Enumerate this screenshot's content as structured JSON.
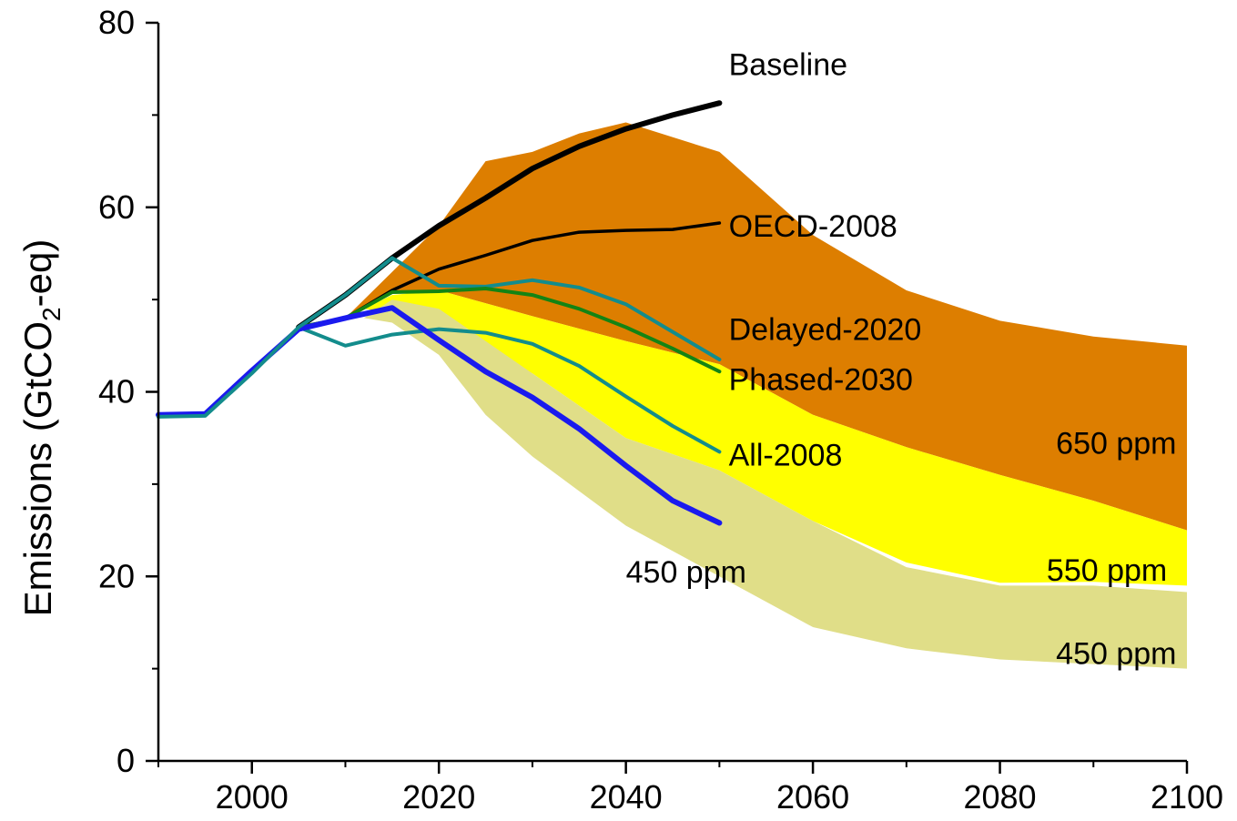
{
  "chart_data": {
    "type": "area",
    "title": "",
    "xlabel": "",
    "ylabel": {
      "prefix": "Emissions (GtCO",
      "subscript": "2",
      "suffix": "-eq)"
    },
    "xlim": [
      1990,
      2100
    ],
    "ylim": [
      0,
      80
    ],
    "x_ticks": [
      2000,
      2020,
      2040,
      2060,
      2080,
      2100
    ],
    "y_ticks": [
      0,
      20,
      40,
      60,
      80
    ],
    "grid": false,
    "bands": [
      {
        "name": "650 ppm",
        "color": "#DD7E00",
        "upper": [
          [
            2010,
            48
          ],
          [
            2015,
            53
          ],
          [
            2020,
            58
          ],
          [
            2025,
            65
          ],
          [
            2030,
            66
          ],
          [
            2035,
            68
          ],
          [
            2040,
            69.2
          ],
          [
            2050,
            66
          ],
          [
            2060,
            57
          ],
          [
            2070,
            51
          ],
          [
            2080,
            47.7
          ],
          [
            2090,
            46
          ],
          [
            2100,
            45
          ]
        ],
        "lower": [
          [
            2010,
            48
          ],
          [
            2015,
            51
          ],
          [
            2020,
            51
          ],
          [
            2030,
            48.2
          ],
          [
            2040,
            45.5
          ],
          [
            2050,
            43
          ],
          [
            2060,
            37.5
          ],
          [
            2070,
            34
          ],
          [
            2080,
            31
          ],
          [
            2090,
            28.2
          ],
          [
            2100,
            25
          ]
        ]
      },
      {
        "name": "550 ppm",
        "color": "#FFFF00",
        "upper": [
          [
            2012,
            49
          ],
          [
            2015,
            50.5
          ],
          [
            2020,
            51
          ],
          [
            2030,
            48.2
          ],
          [
            2040,
            45.5
          ],
          [
            2050,
            43
          ],
          [
            2060,
            37.5
          ],
          [
            2070,
            34
          ],
          [
            2080,
            31
          ],
          [
            2090,
            28.2
          ],
          [
            2100,
            25
          ]
        ],
        "lower": [
          [
            2012,
            49
          ],
          [
            2015,
            48.5
          ],
          [
            2020,
            47
          ],
          [
            2030,
            42
          ],
          [
            2040,
            35
          ],
          [
            2050,
            31.5
          ],
          [
            2060,
            26
          ],
          [
            2070,
            21.5
          ],
          [
            2080,
            19.3
          ],
          [
            2090,
            19.4
          ],
          [
            2100,
            19
          ]
        ]
      },
      {
        "name": "450 ppm",
        "color": "#E0DE88",
        "upper": [
          [
            2012,
            48
          ],
          [
            2015,
            50
          ],
          [
            2020,
            49
          ],
          [
            2030,
            42
          ],
          [
            2040,
            35
          ],
          [
            2050,
            31.5
          ],
          [
            2060,
            26
          ],
          [
            2070,
            21
          ],
          [
            2080,
            19
          ],
          [
            2090,
            19
          ],
          [
            2100,
            18.3
          ]
        ],
        "lower": [
          [
            2012,
            48
          ],
          [
            2015,
            47.5
          ],
          [
            2020,
            44
          ],
          [
            2025,
            37.5
          ],
          [
            2030,
            33
          ],
          [
            2040,
            25.5
          ],
          [
            2050,
            20
          ],
          [
            2060,
            14.5
          ],
          [
            2070,
            12.2
          ],
          [
            2080,
            11
          ],
          [
            2090,
            10.5
          ],
          [
            2100,
            10
          ]
        ]
      }
    ],
    "series": [
      {
        "name": "Baseline",
        "color": "#000000",
        "width": 6,
        "points": [
          [
            2005,
            47
          ],
          [
            2010,
            50.5
          ],
          [
            2015,
            54.5
          ],
          [
            2020,
            58
          ],
          [
            2025,
            61
          ],
          [
            2030,
            64.2
          ],
          [
            2035,
            66.6
          ],
          [
            2040,
            68.5
          ],
          [
            2045,
            70
          ],
          [
            2050,
            71.3
          ]
        ]
      },
      {
        "name": "OECD-2008",
        "color": "#000000",
        "width": 3.5,
        "points": [
          [
            2005,
            47
          ],
          [
            2010,
            48
          ],
          [
            2015,
            51
          ],
          [
            2020,
            53.3
          ],
          [
            2025,
            54.8
          ],
          [
            2030,
            56.4
          ],
          [
            2035,
            57.3
          ],
          [
            2040,
            57.5
          ],
          [
            2045,
            57.6
          ],
          [
            2050,
            58.3
          ]
        ]
      },
      {
        "name": "Delayed-2020",
        "color": "#138C8C",
        "width": 4,
        "points": [
          [
            2005,
            47
          ],
          [
            2010,
            50.5
          ],
          [
            2015,
            54.5
          ],
          [
            2020,
            51.5
          ],
          [
            2025,
            51.4
          ],
          [
            2030,
            52.1
          ],
          [
            2035,
            51.3
          ],
          [
            2040,
            49.5
          ],
          [
            2045,
            46.5
          ],
          [
            2050,
            43.5
          ]
        ]
      },
      {
        "name": "Phased-2030",
        "color": "#148414",
        "width": 4,
        "points": [
          [
            2005,
            47
          ],
          [
            2010,
            48
          ],
          [
            2015,
            50.8
          ],
          [
            2020,
            50.9
          ],
          [
            2025,
            51.2
          ],
          [
            2030,
            50.5
          ],
          [
            2035,
            49
          ],
          [
            2040,
            47
          ],
          [
            2045,
            44.7
          ],
          [
            2050,
            42.2
          ]
        ]
      },
      {
        "name": "All-2008",
        "color": "#138C8C",
        "width": 4,
        "points": [
          [
            2005,
            47
          ],
          [
            2010,
            45
          ],
          [
            2015,
            46.2
          ],
          [
            2020,
            46.8
          ],
          [
            2025,
            46.4
          ],
          [
            2030,
            45.2
          ],
          [
            2035,
            42.8
          ],
          [
            2040,
            39.5
          ],
          [
            2045,
            36.3
          ],
          [
            2050,
            33.5
          ]
        ]
      },
      {
        "name": "450 ppm",
        "color": "#1A1AEE",
        "width": 6,
        "points": [
          [
            1990,
            37.5
          ],
          [
            1995,
            37.6
          ],
          [
            2000,
            42.3
          ],
          [
            2005,
            46.8
          ],
          [
            2010,
            48
          ],
          [
            2015,
            49.1
          ],
          [
            2020,
            45.6
          ],
          [
            2025,
            42.2
          ],
          [
            2030,
            39.4
          ],
          [
            2035,
            36
          ],
          [
            2040,
            32
          ],
          [
            2045,
            28.2
          ],
          [
            2050,
            25.8
          ]
        ]
      },
      {
        "name": "",
        "color": "#138C8C",
        "width": 4,
        "points": [
          [
            1990,
            37.3
          ],
          [
            1995,
            37.4
          ],
          [
            2000,
            42
          ],
          [
            2005,
            47
          ],
          [
            2010,
            50.5
          ],
          [
            2015,
            54.5
          ]
        ]
      }
    ],
    "labels": [
      {
        "text": "Baseline",
        "x": 2051,
        "y": 75.5
      },
      {
        "text": "OECD-2008",
        "x": 2051,
        "y": 58
      },
      {
        "text": "Delayed-2020",
        "x": 2051,
        "y": 46.8
      },
      {
        "text": "Phased-2030",
        "x": 2051,
        "y": 41.4
      },
      {
        "text": "All-2008",
        "x": 2051,
        "y": 33.2
      },
      {
        "text": "450 ppm",
        "x": 2040,
        "y": 20.5
      },
      {
        "text": "650 ppm",
        "x": 2086,
        "y": 34.5
      },
      {
        "text": "550 ppm",
        "x": 2085,
        "y": 20.7
      },
      {
        "text": "450 ppm",
        "x": 2086,
        "y": 11.7
      }
    ]
  }
}
